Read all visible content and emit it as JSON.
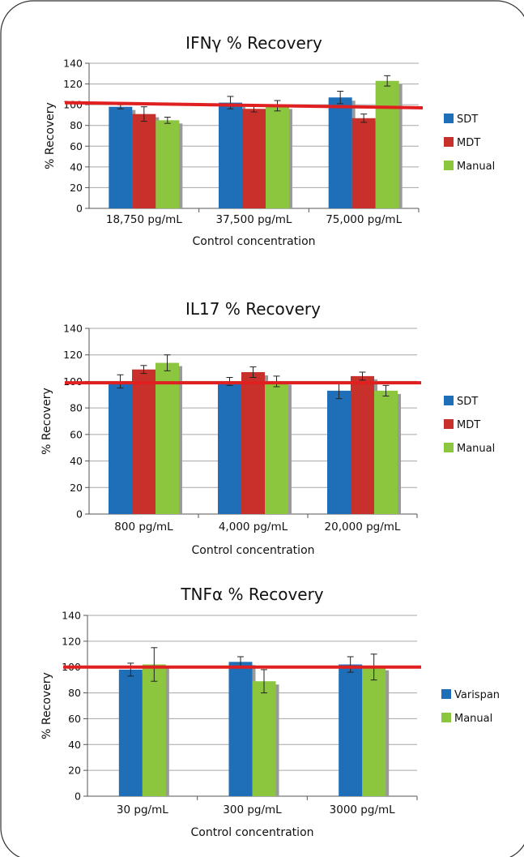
{
  "colors": {
    "SDT": "#1f6fb8",
    "MDT": "#c8302c",
    "Manual": "#8cc63f",
    "Varispan": "#1f6fb8",
    "reference_line": "#e02020",
    "grid": "#a6a6a6",
    "shadow": "#9a9a9a"
  },
  "chart_data": [
    {
      "type": "bar",
      "title": "IFNγ %   Recovery",
      "xlabel": "Control concentration",
      "ylabel": "% Recovery",
      "ylim": [
        0,
        140
      ],
      "yticks": [
        "0",
        "20",
        "40",
        "60",
        "80",
        "100",
        "120",
        "140"
      ],
      "grid": true,
      "legend_position": "right",
      "categories": [
        "18,750 pg/mL",
        "37,500 pg/mL",
        "75,000 pg/mL"
      ],
      "series": [
        {
          "name": "SDT",
          "color_key": "SDT",
          "values": [
            98,
            102,
            107
          ],
          "errors": [
            2,
            6,
            6
          ]
        },
        {
          "name": "MDT",
          "color_key": "MDT",
          "values": [
            91,
            96,
            87
          ],
          "errors": [
            7,
            3,
            4
          ]
        },
        {
          "name": "Manual",
          "color_key": "Manual",
          "values": [
            85,
            99,
            123
          ],
          "errors": [
            3,
            5,
            5
          ]
        }
      ],
      "reference_line": {
        "y_start": 102,
        "y_end": 97
      }
    },
    {
      "type": "bar",
      "title": "IL17 % Recovery",
      "xlabel": "Control concentration",
      "ylabel": "% Recovery",
      "ylim": [
        0,
        140
      ],
      "yticks": [
        "0",
        "20",
        "40",
        "60",
        "80",
        "100",
        "120",
        "140"
      ],
      "grid": true,
      "legend_position": "right",
      "categories": [
        "800 pg/mL",
        "4,000 pg/mL",
        "20,000 pg/mL"
      ],
      "series": [
        {
          "name": "SDT",
          "color_key": "SDT",
          "values": [
            100,
            100,
            93
          ],
          "errors": [
            5,
            3,
            6
          ]
        },
        {
          "name": "MDT",
          "color_key": "MDT",
          "values": [
            109,
            107,
            104
          ],
          "errors": [
            3,
            4,
            3
          ]
        },
        {
          "name": "Manual",
          "color_key": "Manual",
          "values": [
            114,
            100,
            93
          ],
          "errors": [
            6,
            4,
            4
          ]
        }
      ],
      "reference_line": {
        "y_start": 99,
        "y_end": 99
      }
    },
    {
      "type": "bar",
      "title": "TNFα % Recovery",
      "xlabel": "Control concentration",
      "ylabel": "% Recovery",
      "ylim": [
        0,
        140
      ],
      "yticks": [
        "0",
        "20",
        "40",
        "60",
        "80",
        "100",
        "120",
        "140"
      ],
      "grid": true,
      "legend_position": "right",
      "categories": [
        "30 pg/mL",
        "300 pg/mL",
        "3000 pg/mL"
      ],
      "series": [
        {
          "name": "Varispan",
          "color_key": "Varispan",
          "values": [
            98,
            104,
            102
          ],
          "errors": [
            5,
            4,
            6
          ]
        },
        {
          "name": "Manual",
          "color_key": "Manual",
          "values": [
            102,
            89,
            100
          ],
          "errors": [
            13,
            9,
            10
          ]
        }
      ],
      "reference_line": {
        "y_start": 100,
        "y_end": 100
      }
    }
  ]
}
